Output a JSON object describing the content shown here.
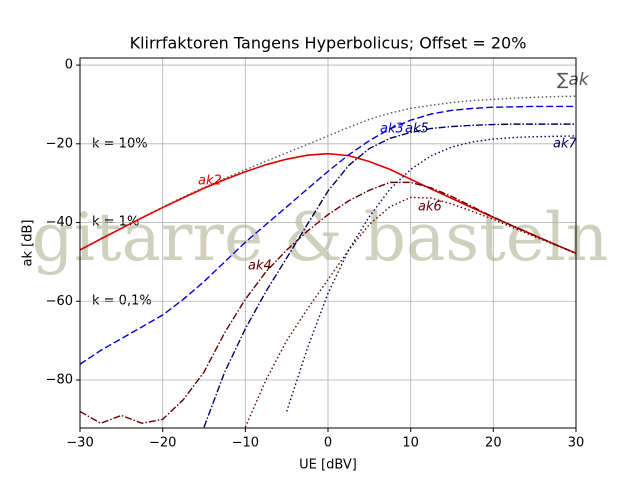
{
  "chart_data": {
    "type": "line",
    "title": "Klirrfaktoren Tangens Hyperbolicus; Offset = 20%",
    "x_label": "UE [dBV]",
    "y_label": "ak [dB]",
    "watermark": "gitarre & basteln",
    "annotations": [
      "k = 10%",
      "k = 1%",
      "k = 0,1%"
    ],
    "grid": true,
    "xlim": [
      -30,
      30
    ],
    "ylim": [
      -92.2,
      1.8
    ],
    "xticks": [
      {
        "value": -30,
        "label": "−30"
      },
      {
        "value": -20,
        "label": "−20"
      },
      {
        "value": -10,
        "label": "−10"
      },
      0,
      10,
      20,
      30
    ],
    "yticks": [
      0,
      {
        "value": -20,
        "label": "−20"
      },
      {
        "value": -40,
        "label": "−40"
      },
      {
        "value": -60,
        "label": "−60"
      },
      {
        "value": -80,
        "label": "−80"
      }
    ],
    "x": [
      -30,
      -27.5,
      -25,
      -22.5,
      -20,
      -17.5,
      -15,
      -12.5,
      -10,
      -7.5,
      -5,
      -2.5,
      0,
      2.5,
      5,
      7.5,
      10,
      12.5,
      15,
      17.5,
      20,
      22.5,
      25,
      27.5,
      30
    ],
    "series": [
      {
        "name": "∑ak",
        "color": "#555555",
        "style": "dotted",
        "values": [
          -46.9,
          -44.1,
          -41.4,
          -38.7,
          -36.1,
          -33.5,
          -31.1,
          -28.8,
          -26.6,
          -24.4,
          -22.3,
          -20.2,
          -18,
          -15.8,
          -13.8,
          -12.2,
          -11,
          -10.2,
          -9.5,
          -9,
          -8.7,
          -8.4,
          -8.2,
          -8,
          -7.9
        ]
      },
      {
        "name": "ak2",
        "color": "#e00000",
        "style": "solid",
        "values": [
          -47,
          -44.2,
          -41.5,
          -38.8,
          -36.2,
          -33.7,
          -31.3,
          -29.1,
          -27.1,
          -25.3,
          -23.9,
          -22.9,
          -22.5,
          -23,
          -24.5,
          -26.5,
          -29,
          -31.5,
          -33.9,
          -36.3,
          -38.7,
          -41,
          -43.3,
          -45.6,
          -47.8
        ]
      },
      {
        "name": "ak3",
        "color": "#0000dd",
        "style": "dashed",
        "values": [
          -76,
          -72.5,
          -69.5,
          -66.5,
          -63.5,
          -59.5,
          -55,
          -50,
          -45,
          -40.5,
          -36,
          -31.5,
          -27,
          -22.8,
          -19.2,
          -16.2,
          -14,
          -12.4,
          -11.5,
          -11,
          -10.7,
          -10.6,
          -10.5,
          -10.5,
          -10.5
        ]
      },
      {
        "name": "ak4",
        "color": "#660000",
        "style": "dashdot",
        "values": [
          -88,
          -91,
          -89,
          -91,
          -90,
          -85,
          -78,
          -68,
          -59.5,
          -52.5,
          -47,
          -42.2,
          -38,
          -34.5,
          -31.8,
          -29.8,
          -29.8,
          -31.2,
          -33.4,
          -36,
          -38.6,
          -41,
          -43.3,
          -45.6,
          -47.8
        ]
      },
      {
        "name": "ak5",
        "color": "#000066",
        "style": "dashdot",
        "values": [
          null,
          null,
          null,
          null,
          null,
          null,
          -92,
          -78,
          -67,
          -57.5,
          -49,
          -40.5,
          -32,
          -25.5,
          -21.2,
          -18.6,
          -17.1,
          -16.1,
          -15.6,
          -15.3,
          -15.1,
          -15,
          -15,
          -15,
          -15
        ]
      },
      {
        "name": "ak6",
        "color": "#660000",
        "style": "dotted",
        "values": [
          null,
          null,
          null,
          null,
          null,
          null,
          null,
          null,
          -92,
          -80,
          -70,
          -62,
          -54.5,
          -47,
          -40.5,
          -36,
          -33.6,
          -33.8,
          -35.3,
          -37.2,
          -39.2,
          -41.4,
          -43.6,
          -45.7,
          -47.9
        ]
      },
      {
        "name": "ak7",
        "color": "#000066",
        "style": "dotted",
        "values": [
          null,
          null,
          null,
          null,
          null,
          null,
          null,
          null,
          null,
          null,
          -88,
          -72,
          -58,
          -47,
          -38.5,
          -31.5,
          -26.5,
          -23,
          -20.8,
          -19.5,
          -18.8,
          -18.4,
          -18.2,
          -18.1,
          -18
        ]
      }
    ]
  }
}
